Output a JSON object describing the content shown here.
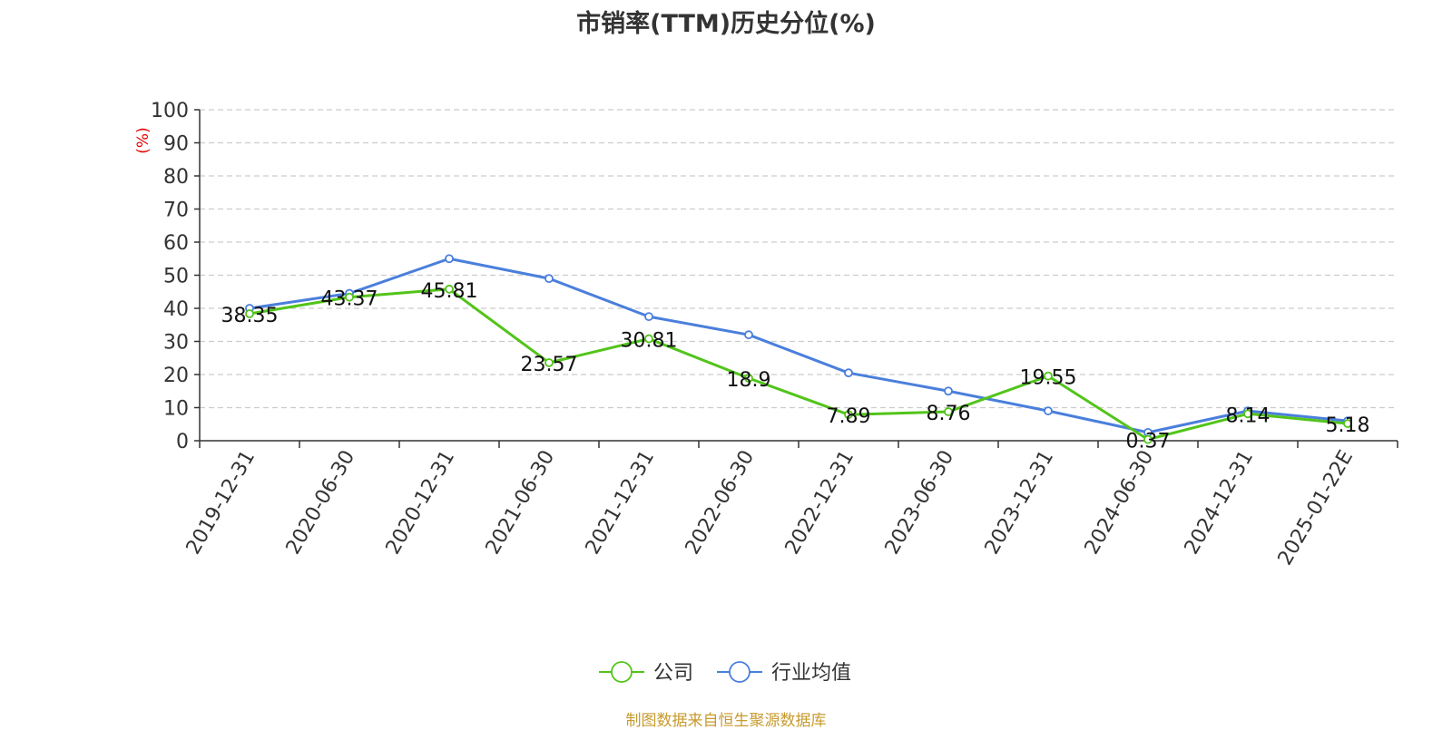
{
  "chart_data": {
    "type": "line",
    "title": "市销率(TTM)历史分位(%)",
    "ylabel": "(%)",
    "xlabel": "",
    "ylim": [
      0,
      100
    ],
    "yticks": [
      0,
      10,
      20,
      30,
      40,
      50,
      60,
      70,
      80,
      90,
      100
    ],
    "grid": true,
    "legend_position": "bottom-center",
    "categories": [
      "2019-12-31",
      "2020-06-30",
      "2020-12-31",
      "2021-06-30",
      "2021-12-31",
      "2022-06-30",
      "2022-12-31",
      "2023-06-30",
      "2023-12-31",
      "2024-06-30",
      "2024-12-31",
      "2025-01-22E"
    ],
    "series": [
      {
        "name": "公司",
        "color": "#52c41a",
        "values": [
          38.35,
          43.37,
          45.81,
          23.57,
          30.81,
          18.9,
          7.89,
          8.76,
          19.55,
          0.37,
          8.14,
          5.18
        ],
        "labels": [
          "38.35",
          "43.37",
          "45.81",
          "23.57",
          "30.81",
          "18.9",
          "7.89",
          "8.76",
          "19.55",
          "0.37",
          "8.14",
          "5.18"
        ]
      },
      {
        "name": "行业均值",
        "color": "#4a7fdc",
        "values": [
          40,
          44.5,
          55,
          49,
          37.5,
          32,
          20.5,
          15,
          9,
          2.5,
          9,
          6
        ]
      }
    ]
  },
  "footer": {
    "source": "制图数据来自恒生聚源数据库"
  }
}
